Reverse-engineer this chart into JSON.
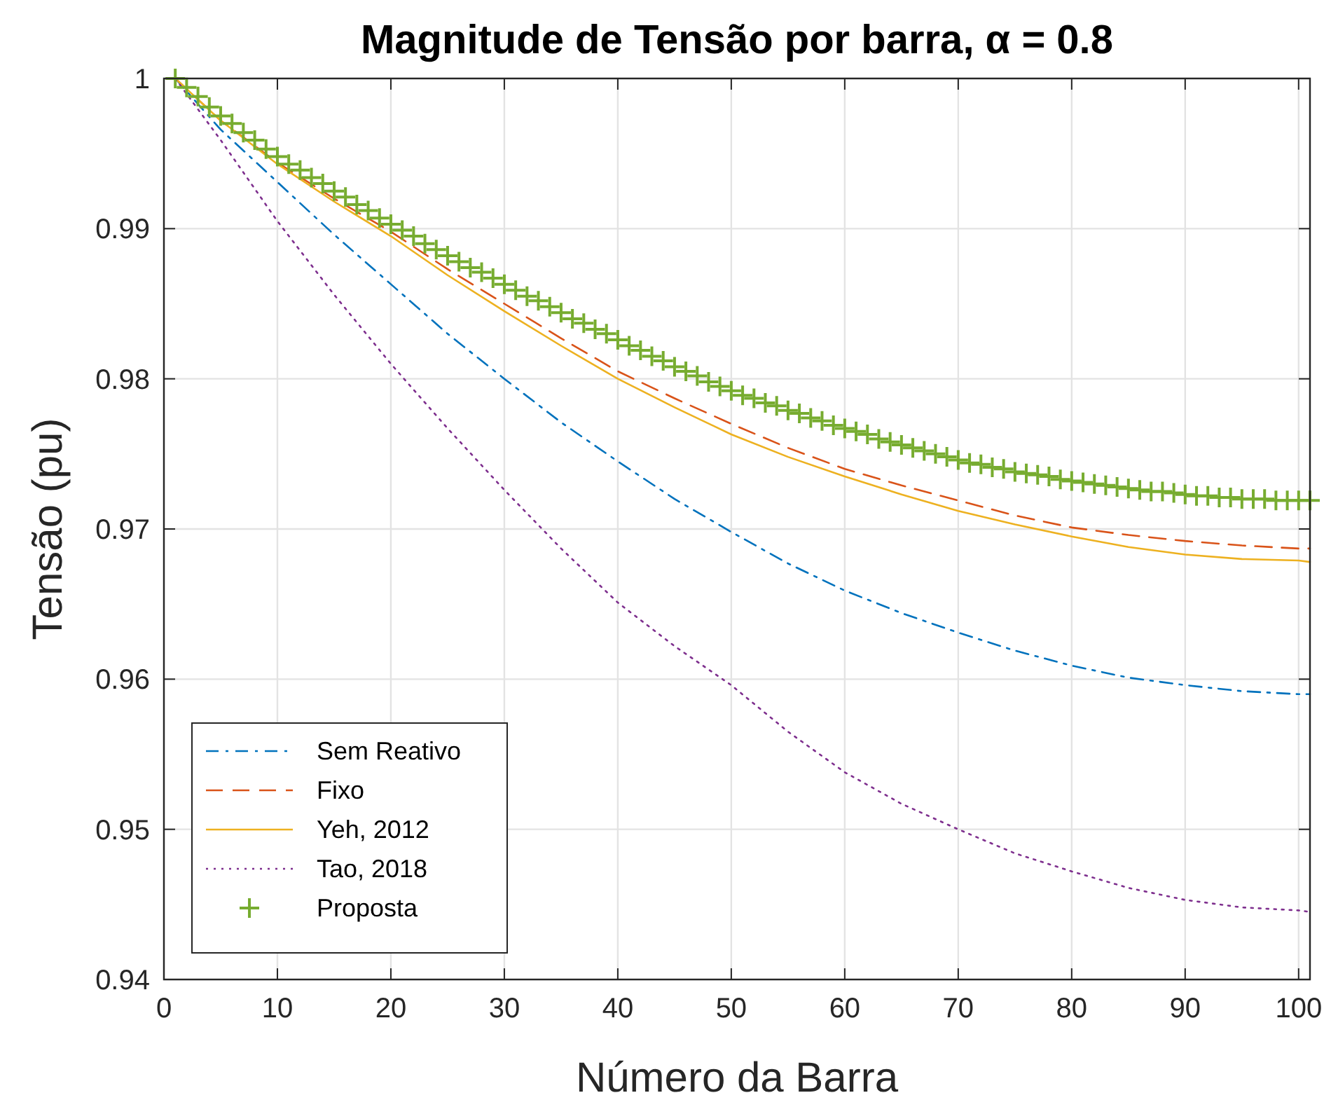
{
  "chart_data": {
    "type": "line",
    "title": "Magnitude de Tensão por barra, α = 0.8",
    "xlabel": "Número da Barra",
    "ylabel": "Tensão (pu)",
    "xlim": [
      0,
      101
    ],
    "xticks": [
      0,
      10,
      20,
      30,
      40,
      50,
      60,
      70,
      80,
      90,
      100
    ],
    "ylim": [
      0.94,
      1
    ],
    "yticks": [
      0.94,
      0.95,
      0.96,
      0.97,
      0.98,
      0.99,
      1
    ],
    "grid": true,
    "legend": "bottom left",
    "series": [
      {
        "name": "Sem Reativo",
        "color": "#0072bd",
        "line_style": "dashdot",
        "x": [
          1,
          5,
          10,
          15,
          20,
          25,
          30,
          35,
          40,
          45,
          50,
          55,
          60,
          65,
          70,
          75,
          80,
          85,
          90,
          95,
          100,
          101
        ],
        "values": [
          1,
          0.9966,
          0.9931,
          0.9896,
          0.9863,
          0.983,
          0.98,
          0.9771,
          0.9745,
          0.972,
          0.9698,
          0.9677,
          0.9659,
          0.9644,
          0.9631,
          0.9619,
          0.9609,
          0.9601,
          0.9596,
          0.9592,
          0.959,
          0.959
        ]
      },
      {
        "name": "Fixo",
        "color": "#d95319",
        "line_style": "dashed",
        "x": [
          1,
          5,
          10,
          15,
          20,
          25,
          30,
          35,
          40,
          45,
          50,
          55,
          60,
          65,
          70,
          75,
          80,
          85,
          90,
          95,
          100,
          101
        ],
        "values": [
          1,
          0.9972,
          0.9944,
          0.992,
          0.9898,
          0.9873,
          0.985,
          0.9827,
          0.9805,
          0.9787,
          0.977,
          0.9754,
          0.974,
          0.9729,
          0.9719,
          0.9709,
          0.9701,
          0.9696,
          0.9692,
          0.9689,
          0.9687,
          0.9687
        ]
      },
      {
        "name": "Yeh, 2012",
        "color": "#edb120",
        "line_style": "solid",
        "x": [
          1,
          5,
          10,
          15,
          20,
          25,
          30,
          35,
          40,
          45,
          50,
          55,
          60,
          65,
          70,
          75,
          80,
          85,
          90,
          95,
          100,
          101
        ],
        "values": [
          1,
          0.9972,
          0.9943,
          0.9918,
          0.9895,
          0.9869,
          0.9845,
          0.9822,
          0.98,
          0.9781,
          0.9763,
          0.9748,
          0.9735,
          0.9723,
          0.9712,
          0.9703,
          0.9695,
          0.9688,
          0.9683,
          0.968,
          0.9679,
          0.9678
        ]
      },
      {
        "name": "Tao, 2018",
        "color": "#7e2f8e",
        "line_style": "dotted",
        "x": [
          1,
          5,
          10,
          15,
          20,
          25,
          30,
          35,
          40,
          45,
          50,
          55,
          60,
          65,
          70,
          75,
          80,
          85,
          90,
          95,
          100,
          101
        ],
        "values": [
          1,
          0.9959,
          0.9905,
          0.9856,
          0.981,
          0.9767,
          0.9726,
          0.9687,
          0.9651,
          0.9622,
          0.9596,
          0.9565,
          0.9538,
          0.9517,
          0.95,
          0.9484,
          0.9472,
          0.9461,
          0.9453,
          0.9448,
          0.9446,
          0.9445
        ]
      },
      {
        "name": "Proposta",
        "color": "#77ac30",
        "type": "scatter",
        "marker": "cross",
        "x": [
          1,
          2,
          3,
          4,
          5,
          6,
          7,
          8,
          9,
          10,
          11,
          12,
          13,
          14,
          15,
          16,
          17,
          18,
          19,
          20,
          21,
          22,
          23,
          24,
          25,
          26,
          27,
          28,
          29,
          30,
          31,
          32,
          33,
          34,
          35,
          36,
          37,
          38,
          39,
          40,
          41,
          42,
          43,
          44,
          45,
          46,
          47,
          48,
          49,
          50,
          51,
          52,
          53,
          54,
          55,
          56,
          57,
          58,
          59,
          60,
          61,
          62,
          63,
          64,
          65,
          66,
          67,
          68,
          69,
          70,
          71,
          72,
          73,
          74,
          75,
          76,
          77,
          78,
          79,
          80,
          81,
          82,
          83,
          84,
          85,
          86,
          87,
          88,
          89,
          90,
          91,
          92,
          93,
          94,
          95,
          96,
          97,
          98,
          99,
          100,
          101
        ],
        "values": [
          1,
          0.9994,
          0.9988,
          0.9981,
          0.9975,
          0.997,
          0.9964,
          0.9959,
          0.9953,
          0.9948,
          0.9943,
          0.9939,
          0.9934,
          0.993,
          0.9925,
          0.9921,
          0.9916,
          0.9912,
          0.9907,
          0.9903,
          0.9899,
          0.9895,
          0.989,
          0.9886,
          0.9882,
          0.9878,
          0.9874,
          0.9871,
          0.9867,
          0.9863,
          0.9859,
          0.9855,
          0.9852,
          0.9848,
          0.9844,
          0.984,
          0.9837,
          0.9833,
          0.983,
          0.9826,
          0.9822,
          0.9819,
          0.9815,
          0.9812,
          0.9808,
          0.9805,
          0.9802,
          0.9798,
          0.9795,
          0.9792,
          0.9789,
          0.9787,
          0.9784,
          0.9782,
          0.9779,
          0.9777,
          0.9774,
          0.9772,
          0.9769,
          0.9767,
          0.9765,
          0.9763,
          0.976,
          0.9758,
          0.9756,
          0.9754,
          0.9752,
          0.975,
          0.9748,
          0.9746,
          0.9744,
          0.9743,
          0.9741,
          0.974,
          0.9738,
          0.9737,
          0.9736,
          0.9735,
          0.9733,
          0.9732,
          0.9731,
          0.973,
          0.9729,
          0.9728,
          0.9727,
          0.9726,
          0.9725,
          0.9725,
          0.9724,
          0.9723,
          0.9722,
          0.9722,
          0.9721,
          0.9721,
          0.972,
          0.972,
          0.972,
          0.9719,
          0.9719,
          0.9719,
          0.9719
        ]
      }
    ]
  }
}
